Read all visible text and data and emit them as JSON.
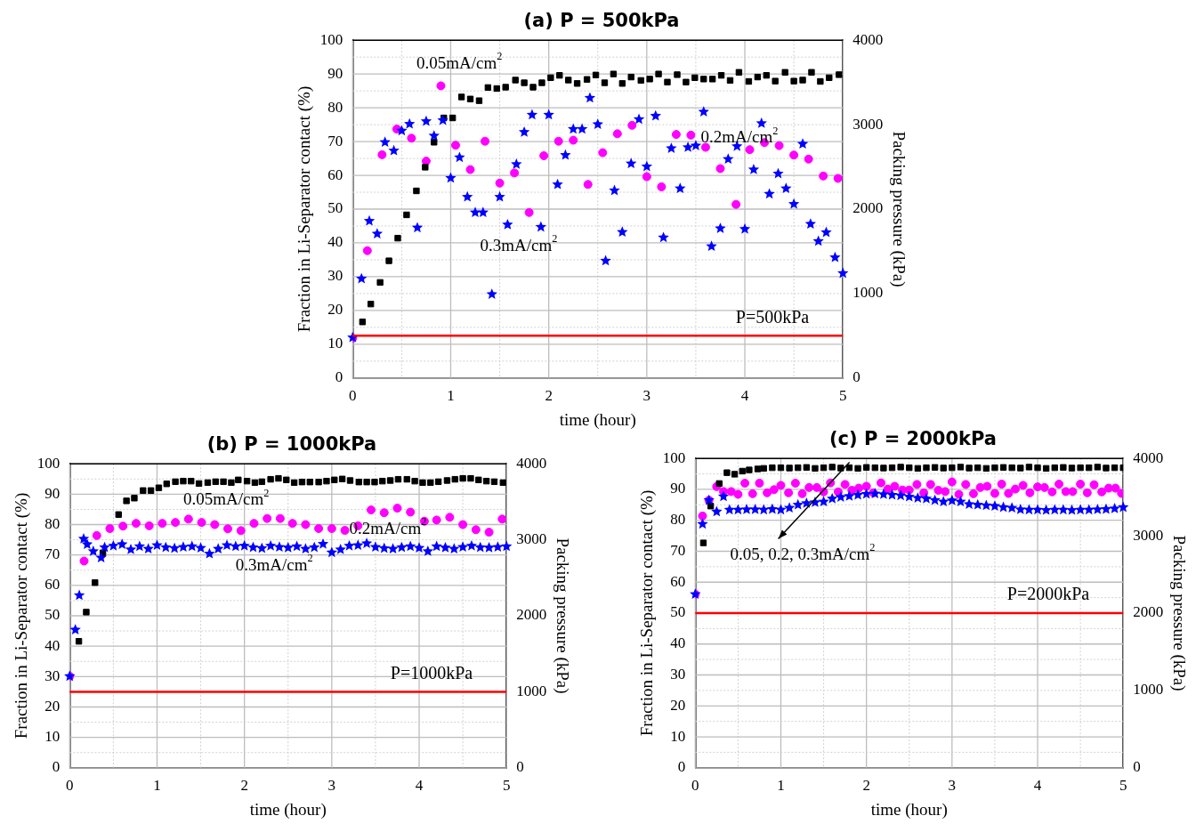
{
  "chart_data": [
    {
      "type": "scatter",
      "title": "(a) P = 500kPa",
      "xlabel": "time (hour)",
      "ylabel": "Fraction in Li-Separator contact (%)",
      "y2label": "Packing pressure (kPa)",
      "xlim": [
        0,
        5
      ],
      "xticks": [
        0,
        {
          "value": 0.5,
          "label": null
        },
        1,
        {
          "value": 1.5,
          "label": null
        },
        2,
        {
          "value": 2.5,
          "label": null
        },
        3,
        {
          "value": 3.5,
          "label": null
        },
        4,
        {
          "value": 4.5,
          "label": null
        },
        5
      ],
      "ylim": [
        0,
        100
      ],
      "yticks": [
        0,
        {
          "value": 5,
          "label": null
        },
        10,
        {
          "value": 15,
          "label": null
        },
        20,
        {
          "value": 25,
          "label": null
        },
        30,
        {
          "value": 35,
          "label": null
        },
        40,
        {
          "value": 45,
          "label": null
        },
        50,
        {
          "value": 55,
          "label": null
        },
        60,
        {
          "value": 65,
          "label": null
        },
        70,
        {
          "value": 75,
          "label": null
        },
        80,
        {
          "value": 85,
          "label": null
        },
        90,
        {
          "value": 95,
          "label": null
        },
        100
      ],
      "y2lim": [
        0,
        4000
      ],
      "y2ticks": [
        0,
        1000,
        2000,
        3000,
        4000
      ],
      "grid": true,
      "series": [
        {
          "name": "0.05mA/cm$^{2}$",
          "color": "#000000",
          "marker": "square",
          "x": [
            0.1,
            0.185,
            0.28,
            0.37,
            0.46,
            0.55,
            0.65,
            0.74,
            0.83,
            0.93,
            1.02,
            1.11,
            1.2,
            1.29,
            1.38,
            1.47,
            1.56,
            1.66,
            1.75,
            1.84,
            1.93,
            2.02,
            2.11,
            2.2,
            2.29,
            2.39,
            2.48,
            2.57,
            2.66,
            2.75,
            2.84,
            2.94,
            3.03,
            3.12,
            3.21,
            3.31,
            3.4,
            3.49,
            3.58,
            3.67,
            3.76,
            3.85,
            3.94,
            4.04,
            4.13,
            4.22,
            4.31,
            4.41,
            4.5,
            4.59,
            4.68,
            4.77,
            4.86,
            4.96
          ],
          "values": [
            16.6,
            21.9,
            28.3,
            34.7,
            41.4,
            48.3,
            55.4,
            62.4,
            69.8,
            77,
            77,
            83.2,
            82.6,
            82.1,
            86,
            85.7,
            86.1,
            88.2,
            87.4,
            86.1,
            87.4,
            88.9,
            89.6,
            88.2,
            87.2,
            88.4,
            89.7,
            87.4,
            90,
            87.2,
            89.1,
            88.1,
            88.5,
            90,
            87.6,
            89.8,
            87.6,
            88.9,
            88.5,
            88.5,
            89.6,
            88.1,
            90.5,
            87.8,
            89.1,
            89.6,
            87.9,
            90.5,
            87.9,
            88.2,
            90.5,
            87.8,
            88.9,
            89.8
          ]
        },
        {
          "name": "0.2mA/cm$^{2}$",
          "color": "#ff00ff",
          "marker": "circle",
          "x": [
            0,
            0.15,
            0.3,
            0.45,
            0.6,
            0.75,
            0.9,
            1.05,
            1.2,
            1.35,
            1.5,
            1.65,
            1.8,
            1.95,
            2.1,
            2.25,
            2.4,
            2.55,
            2.7,
            2.85,
            3,
            3.15,
            3.3,
            3.45,
            3.6,
            3.75,
            3.91,
            4.05,
            4.2,
            4.35,
            4.5,
            4.65,
            4.8,
            4.95
          ],
          "values": [
            11.8,
            37.7,
            66.1,
            73.7,
            71,
            64.2,
            86.5,
            68.9,
            61.7,
            70.1,
            57.7,
            60.7,
            49,
            65.8,
            70.1,
            70.4,
            57.3,
            66.7,
            72.3,
            74.8,
            59.6,
            56.6,
            72.1,
            71.9,
            68.3,
            62,
            51.4,
            67.6,
            69.7,
            68.8,
            66,
            64.8,
            59.8,
            59.1
          ]
        },
        {
          "name": "0.3mA/cm$^{2}$",
          "color": "#0000ff",
          "marker": "star",
          "x": [
            0,
            0.09,
            0.17,
            0.25,
            0.33,
            0.42,
            0.5,
            0.58,
            0.66,
            0.75,
            0.83,
            0.92,
            1,
            1.09,
            1.17,
            1.25,
            1.33,
            1.42,
            1.5,
            1.58,
            1.67,
            1.75,
            1.83,
            1.92,
            2,
            2.09,
            2.17,
            2.25,
            2.34,
            2.42,
            2.5,
            2.58,
            2.67,
            2.75,
            2.84,
            2.92,
            3,
            3.09,
            3.17,
            3.25,
            3.34,
            3.42,
            3.5,
            3.58,
            3.66,
            3.75,
            3.83,
            3.92,
            4,
            4.09,
            4.17,
            4.25,
            4.34,
            4.42,
            4.5,
            4.59,
            4.67,
            4.75,
            4.83,
            4.92,
            5
          ],
          "values": [
            12,
            29.4,
            46.5,
            42.7,
            69.8,
            67.3,
            73.2,
            75.2,
            44.5,
            76,
            71.7,
            76.3,
            59.2,
            65.3,
            53.6,
            49,
            49,
            24.8,
            53.6,
            45.4,
            63.3,
            72.8,
            77.9,
            44.7,
            77.9,
            57.3,
            66,
            73.7,
            73.7,
            82.9,
            75.1,
            34.7,
            55.5,
            43.2,
            63.5,
            76.6,
            62.6,
            77.6,
            41.6,
            68,
            56.1,
            68.3,
            68.8,
            78.8,
            39,
            44.3,
            64.8,
            68.6,
            44.1,
            61.7,
            75.4,
            54.5,
            60.5,
            56.1,
            51.5,
            69.3,
            45.6,
            40.5,
            43.1,
            35.7,
            31
          ]
        }
      ],
      "ref_lines": [
        {
          "axis": "y2",
          "value": 500,
          "label": "P=500kPa",
          "color": "#ff0000"
        }
      ]
    },
    {
      "type": "scatter",
      "title": "(b) P = 1000kPa",
      "xlabel": "time (hour)",
      "ylabel": "Fraction in Li-Separator contact (%)",
      "y2label": "Packing pressure (kPa)",
      "xlim": [
        0,
        5
      ],
      "xticks": [
        0,
        {
          "value": 0.5,
          "label": null
        },
        1,
        {
          "value": 1.5,
          "label": null
        },
        2,
        {
          "value": 2.5,
          "label": null
        },
        3,
        {
          "value": 3.5,
          "label": null
        },
        4,
        {
          "value": 4.5,
          "label": null
        },
        5
      ],
      "ylim": [
        0,
        100
      ],
      "yticks": [
        0,
        {
          "value": 5,
          "label": null
        },
        10,
        {
          "value": 15,
          "label": null
        },
        20,
        {
          "value": 25,
          "label": null
        },
        30,
        {
          "value": 35,
          "label": null
        },
        40,
        {
          "value": 45,
          "label": null
        },
        50,
        {
          "value": 55,
          "label": null
        },
        60,
        {
          "value": 65,
          "label": null
        },
        70,
        {
          "value": 75,
          "label": null
        },
        80,
        {
          "value": 85,
          "label": null
        },
        90,
        {
          "value": 95,
          "label": null
        },
        100
      ],
      "y2lim": [
        0,
        4000
      ],
      "y2ticks": [
        0,
        1000,
        2000,
        3000,
        4000
      ],
      "grid": true,
      "series": [
        {
          "name": "0.05mA/cm$^{2}$",
          "color": "#000000",
          "marker": "square",
          "x": [
            0.105,
            0.19,
            0.29,
            0.38,
            0.56,
            0.65,
            0.74,
            0.84,
            0.93,
            1.02,
            1.11,
            1.21,
            1.3,
            1.39,
            1.48,
            1.58,
            1.67,
            1.76,
            1.85,
            1.93,
            2.03,
            2.12,
            2.2,
            2.3,
            2.39,
            2.48,
            2.57,
            2.66,
            2.75,
            2.85,
            2.94,
            3.03,
            3.12,
            3.21,
            3.31,
            3.4,
            3.49,
            3.58,
            3.67,
            3.76,
            3.86,
            3.95,
            4.04,
            4.13,
            4.22,
            4.32,
            4.41,
            4.5,
            4.59,
            4.68,
            4.77,
            4.86,
            4.96
          ],
          "values": [
            41.6,
            51.2,
            60.9,
            70.7,
            83.3,
            87.8,
            88.7,
            91.2,
            91.2,
            92.1,
            93.4,
            94.1,
            94.3,
            94.3,
            93.5,
            93.8,
            94.1,
            94.1,
            93.8,
            94.7,
            94.3,
            93.8,
            94.1,
            94.9,
            95.2,
            94.7,
            93.8,
            94,
            94,
            94,
            94.3,
            94.7,
            95,
            94.5,
            94,
            94,
            94,
            94.3,
            94.5,
            94.9,
            94.9,
            94.3,
            93.8,
            93.8,
            94.1,
            94.5,
            94.9,
            95.2,
            95.2,
            94.7,
            94.3,
            94.1,
            93.8
          ]
        },
        {
          "name": "0.2mA/cm$^{2}$",
          "color": "#ff00ff",
          "marker": "circle",
          "x": [
            0,
            0.165,
            0.31,
            0.46,
            0.61,
            0.76,
            0.91,
            1.06,
            1.21,
            1.36,
            1.51,
            1.66,
            1.81,
            1.96,
            2.11,
            2.26,
            2.41,
            2.55,
            2.7,
            2.85,
            3,
            3.15,
            3.3,
            3.45,
            3.6,
            3.75,
            3.9,
            4.06,
            4.2,
            4.35,
            4.5,
            4.65,
            4.8,
            4.95
          ],
          "values": [
            30.1,
            68,
            76.4,
            78.7,
            79.5,
            80.4,
            79.6,
            80.4,
            80.7,
            81.8,
            80.7,
            80,
            78.6,
            78,
            80.4,
            82,
            82,
            80.4,
            80,
            78.7,
            78.7,
            78.1,
            79.6,
            84.8,
            83.9,
            85.4,
            84.1,
            81.1,
            81.5,
            82.4,
            80,
            78.3,
            77.5,
            81.8
          ]
        },
        {
          "name": "0.3mA/cm$^{2}$",
          "color": "#0000ff",
          "marker": "star",
          "x": [
            0,
            0.065,
            0.11,
            0.16,
            0.2,
            0.27,
            0.36,
            0.4,
            0.5,
            0.6,
            0.7,
            0.8,
            0.9,
            1,
            1.1,
            1.2,
            1.3,
            1.4,
            1.5,
            1.6,
            1.7,
            1.8,
            1.9,
            2,
            2.1,
            2.2,
            2.3,
            2.4,
            2.5,
            2.6,
            2.7,
            2.8,
            2.9,
            3,
            3.1,
            3.2,
            3.3,
            3.4,
            3.5,
            3.6,
            3.7,
            3.8,
            3.9,
            4,
            4.1,
            4.2,
            4.3,
            4.4,
            4.5,
            4.6,
            4.7,
            4.8,
            4.9,
            5
          ],
          "values": [
            30.1,
            45.4,
            56.7,
            75.3,
            73.5,
            71.2,
            69.1,
            72.5,
            73,
            73.5,
            71.8,
            72.8,
            72,
            73.2,
            72.5,
            72.2,
            72.6,
            72.8,
            72.3,
            70.4,
            72,
            73.2,
            72.8,
            73,
            72.5,
            72.2,
            73,
            72.6,
            72.4,
            72.8,
            72,
            72.5,
            73.6,
            70.8,
            71.8,
            73,
            73.2,
            73.8,
            72.6,
            72.2,
            72,
            72.5,
            72.8,
            72.3,
            71.2,
            72.8,
            72.4,
            72,
            72.6,
            73,
            72.5,
            72.4,
            72.6,
            72.8
          ]
        }
      ],
      "ref_lines": [
        {
          "axis": "y2",
          "value": 1000,
          "label": "P=1000kPa",
          "color": "#ff0000"
        }
      ]
    },
    {
      "type": "scatter",
      "title": "(c) P = 2000kPa",
      "xlabel": "time (hour)",
      "ylabel": "Fraction in Li-Separator contact (%)",
      "y2label": "Packing pressure (kPa)",
      "xlim": [
        0,
        5
      ],
      "xticks": [
        0,
        {
          "value": 0.5,
          "label": null
        },
        1,
        {
          "value": 1.5,
          "label": null
        },
        2,
        {
          "value": 2.5,
          "label": null
        },
        3,
        {
          "value": 3.5,
          "label": null
        },
        4,
        {
          "value": 4.5,
          "label": null
        },
        5
      ],
      "ylim": [
        0,
        100
      ],
      "yticks": [
        0,
        {
          "value": 5,
          "label": null
        },
        10,
        {
          "value": 15,
          "label": null
        },
        20,
        {
          "value": 25,
          "label": null
        },
        30,
        {
          "value": 35,
          "label": null
        },
        40,
        {
          "value": 45,
          "label": null
        },
        50,
        {
          "value": 55,
          "label": null
        },
        60,
        {
          "value": 65,
          "label": null
        },
        70,
        {
          "value": 75,
          "label": null
        },
        80,
        {
          "value": 85,
          "label": null
        },
        90,
        {
          "value": 95,
          "label": null
        },
        100
      ],
      "y2lim": [
        0,
        4000
      ],
      "y2ticks": [
        0,
        1000,
        2000,
        3000,
        4000
      ],
      "grid": true,
      "series": [
        {
          "color": "#000000",
          "marker": "square",
          "x": [
            0.095,
            0.18,
            0.28,
            0.37,
            0.46,
            0.55,
            0.63,
            0.73,
            0.8,
            0.9,
            1,
            1.1,
            1.2,
            1.3,
            1.4,
            1.5,
            1.6,
            1.7,
            1.8,
            1.9,
            2,
            2.1,
            2.2,
            2.3,
            2.4,
            2.5,
            2.6,
            2.7,
            2.8,
            2.9,
            3,
            3.1,
            3.2,
            3.3,
            3.4,
            3.5,
            3.6,
            3.7,
            3.8,
            3.9,
            4,
            4.1,
            4.2,
            4.3,
            4.4,
            4.5,
            4.6,
            4.7,
            4.8,
            4.9,
            5
          ],
          "values": [
            72.7,
            84.6,
            91.9,
            95.4,
            94.9,
            95.9,
            96.3,
            96.6,
            96.8,
            97,
            97,
            96.9,
            97,
            97.1,
            96.8,
            97,
            97.2,
            96.9,
            97,
            96.8,
            97.1,
            97,
            96.9,
            97,
            97.2,
            97,
            96.8,
            97,
            97.1,
            96.9,
            97,
            97.2,
            96.9,
            97,
            96.8,
            97,
            97.1,
            97,
            96.9,
            97.2,
            97,
            96.8,
            97,
            97.1,
            96.9,
            97,
            97,
            97.2,
            96.9,
            97,
            97
          ]
        },
        {
          "color": "#ff00ff",
          "marker": "circle",
          "x": [
            0,
            0.085,
            0.16,
            0.25,
            0.33,
            0.42,
            0.5,
            0.58,
            0.67,
            0.75,
            0.84,
            0.92,
            1,
            1.09,
            1.17,
            1.25,
            1.33,
            1.42,
            1.5,
            1.58,
            1.67,
            1.75,
            1.83,
            1.91,
            2,
            2.08,
            2.17,
            2.25,
            2.33,
            2.42,
            2.5,
            2.59,
            2.67,
            2.75,
            2.84,
            2.92,
            3,
            3.08,
            3.16,
            3.25,
            3.33,
            3.41,
            3.5,
            3.58,
            3.66,
            3.74,
            3.83,
            3.91,
            4,
            4.08,
            4.17,
            4.25,
            4.33,
            4.41,
            4.5,
            4.58,
            4.66,
            4.75,
            4.83,
            4.91,
            4.98
          ],
          "values": [
            56.1,
            81.4,
            86.5,
            90.9,
            89.3,
            89.3,
            88.4,
            92,
            88.6,
            92,
            88.9,
            89.9,
            91.3,
            88.9,
            92,
            88.6,
            90.6,
            90.6,
            89.2,
            92.1,
            89.2,
            91.6,
            89.7,
            90.4,
            91,
            88.9,
            92.1,
            90.1,
            91,
            89.8,
            89.8,
            91.6,
            88.9,
            91.6,
            89.7,
            89.3,
            92.4,
            88.4,
            91.6,
            88.6,
            90.6,
            91,
            88.7,
            91.7,
            88.7,
            90.1,
            91.3,
            88.9,
            90.8,
            90.6,
            89.2,
            91.7,
            89.3,
            89.3,
            91.7,
            88.9,
            91.5,
            89.2,
            90.4,
            90.4,
            88.7
          ]
        },
        {
          "color": "#0000ff",
          "marker": "star",
          "x": [
            0,
            0.085,
            0.16,
            0.25,
            0.33,
            0.4,
            0.5,
            0.6,
            0.7,
            0.8,
            0.9,
            1,
            1.1,
            1.2,
            1.3,
            1.4,
            1.5,
            1.6,
            1.7,
            1.8,
            1.9,
            2,
            2.1,
            2.2,
            2.3,
            2.4,
            2.5,
            2.6,
            2.7,
            2.8,
            2.9,
            3,
            3.1,
            3.2,
            3.3,
            3.4,
            3.5,
            3.6,
            3.7,
            3.8,
            3.9,
            4,
            4.1,
            4.2,
            4.3,
            4.4,
            4.5,
            4.6,
            4.7,
            4.8,
            4.9,
            5
          ],
          "values": [
            56.1,
            78.8,
            86.5,
            82.8,
            87.7,
            83.4,
            83.4,
            83.5,
            83.5,
            83.4,
            83.6,
            83.4,
            84,
            85,
            85.5,
            85.8,
            86,
            87,
            87.5,
            87.8,
            88.2,
            88.5,
            88.6,
            88.4,
            88.2,
            88,
            87.6,
            87.2,
            87,
            86.5,
            86,
            86.4,
            86,
            85.2,
            85,
            84.8,
            84.6,
            84.2,
            84,
            83.5,
            83.4,
            83.4,
            83.3,
            83.4,
            83.4,
            83.3,
            83.4,
            83.4,
            83.5,
            83.6,
            83.8,
            84.2
          ]
        }
      ],
      "ref_lines": [
        {
          "axis": "y2",
          "value": 2000,
          "label": "P=2000kPa",
          "color": "#ff0000"
        }
      ],
      "annotations": [
        "0.05, 0.2, 0.3mA/cm$^{2}$"
      ]
    }
  ]
}
